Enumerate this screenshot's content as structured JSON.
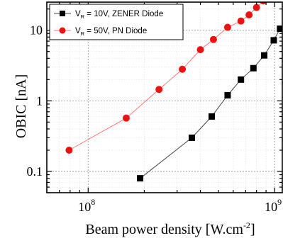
{
  "chart_data": {
    "type": "scatter",
    "x_scale": "log",
    "y_scale": "log",
    "xlim": [
      60000000.0,
      1100000000.0
    ],
    "ylim": [
      0.05,
      25
    ],
    "grid": true,
    "legend_position": "top-left",
    "xlabel": {
      "text": "Beam power density ",
      "unit_open": "[W.cm",
      "unit_sup": "-2",
      "unit_close": "]"
    },
    "ylabel": "OBIC [nA]",
    "x_ticks": [
      {
        "value": 100000000.0,
        "base": "10",
        "exp": "8"
      },
      {
        "value": 1000000000.0,
        "base": "10",
        "exp": "9"
      }
    ],
    "y_ticks": [
      {
        "value": 0.1,
        "label": "0.1"
      },
      {
        "value": 1,
        "label": "1"
      },
      {
        "value": 10,
        "label": "10"
      }
    ],
    "series": [
      {
        "name_prefix": "V",
        "name_sub": "R",
        "name_suffix": " = 10V, ZENER Diode",
        "marker": "square",
        "marker_color": "#000000",
        "line_color": "#444444",
        "x": [
          190000000.0,
          360000000.0,
          460000000.0,
          560000000.0,
          660000000.0,
          770000000.0,
          880000000.0,
          990000000.0,
          1070000000.0
        ],
        "y": [
          0.08,
          0.3,
          0.6,
          1.2,
          2.0,
          2.9,
          4.4,
          7.2,
          10.5
        ]
      },
      {
        "name_prefix": "V",
        "name_sub": "R",
        "name_suffix": " = 50V, PN Diode",
        "marker": "circle",
        "marker_color": "#ee1111",
        "line_color": "#ff7777",
        "x": [
          79000000.0,
          160000000.0,
          240000000.0,
          320000000.0,
          400000000.0,
          470000000.0,
          560000000.0,
          660000000.0,
          730000000.0,
          800000000.0,
          870000000.0
        ],
        "y": [
          0.2,
          0.57,
          1.45,
          2.8,
          5.3,
          7.4,
          11.0,
          13.5,
          16.5,
          21.0,
          26.0
        ]
      }
    ]
  }
}
